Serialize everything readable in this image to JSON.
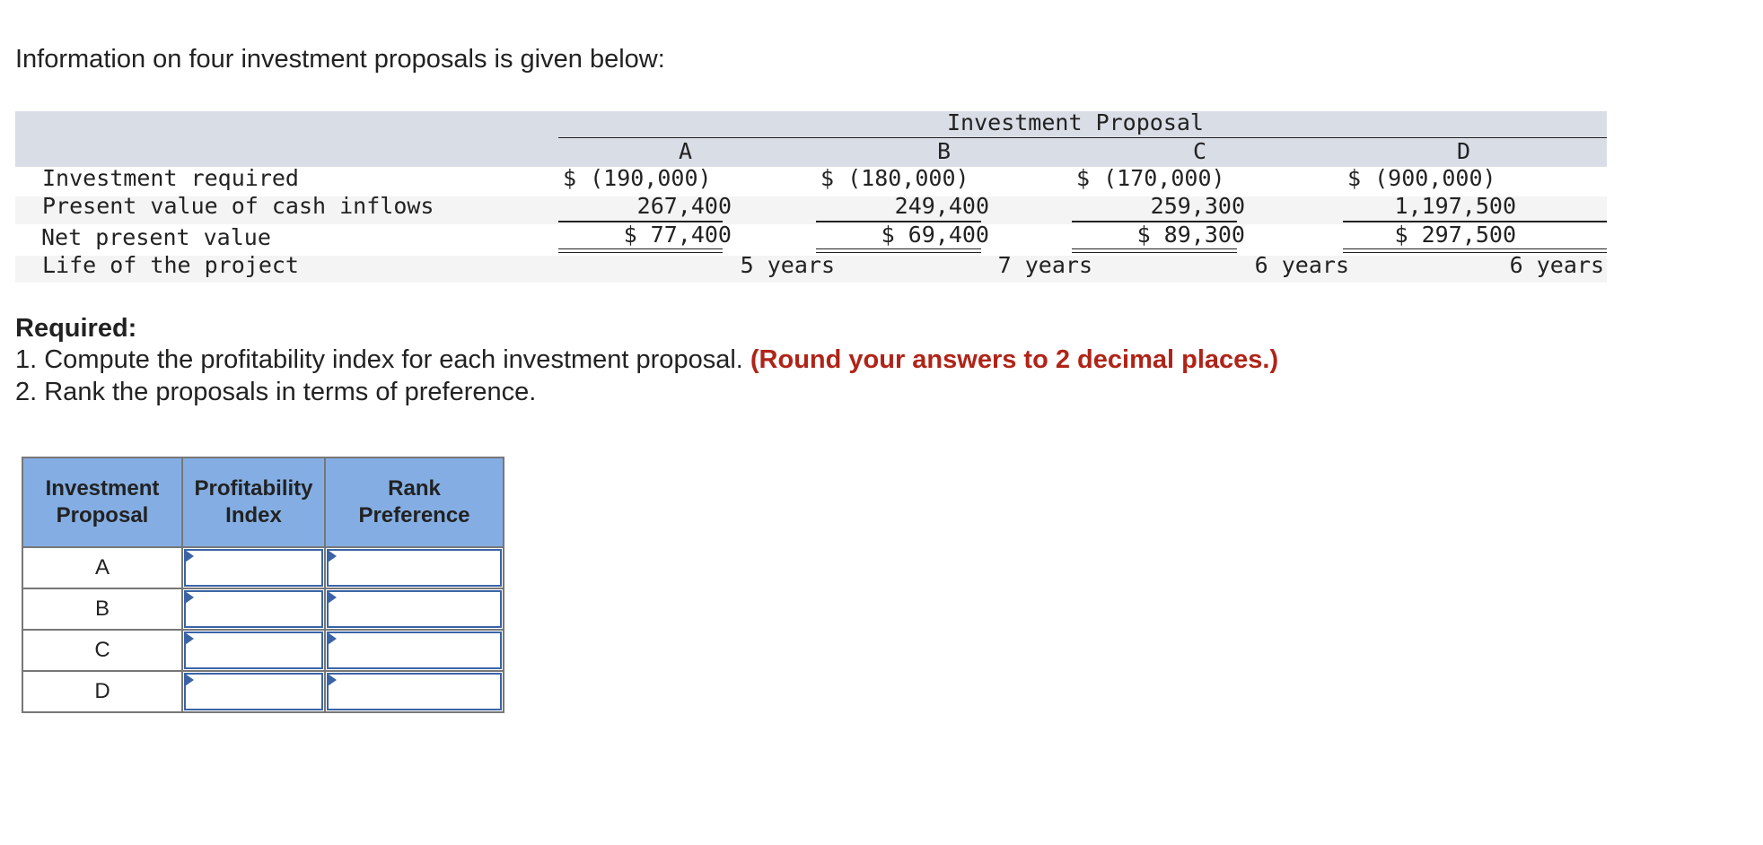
{
  "intro": "Information on four investment proposals is given below:",
  "data_table": {
    "group_header": "Investment Proposal",
    "columns": [
      "A",
      "B",
      "C",
      "D"
    ],
    "rows": [
      {
        "label": "Investment required",
        "values": [
          "$ (190,000)",
          "$ (180,000)",
          "$ (170,000)",
          "$ (900,000)"
        ]
      },
      {
        "label": "Present value of cash inflows",
        "values": [
          "267,400",
          "249,400",
          "259,300",
          "1,197,500"
        ]
      },
      {
        "label": "Net present value",
        "values": [
          "$ 77,400",
          "$ 69,400",
          "$ 89,300",
          "$ 297,500"
        ]
      },
      {
        "label": "Life of the project",
        "values": [
          "5 years",
          "7 years",
          "6 years",
          "6 years"
        ]
      }
    ]
  },
  "required": {
    "title": "Required:",
    "item1": "1. Compute the profitability index for each investment proposal.",
    "item1_note": "(Round your answers to 2 decimal places.)",
    "item2": "2. Rank the proposals in terms of preference."
  },
  "answer_table": {
    "headers": [
      "Investment Proposal",
      "Profitability Index",
      "Rank Preference"
    ],
    "header_lines": [
      [
        "Investment",
        "Proposal"
      ],
      [
        "Profitability",
        "Index"
      ],
      [
        "Rank",
        "Preference"
      ]
    ],
    "rows": [
      {
        "proposal": "A",
        "profitability_index": "",
        "rank": ""
      },
      {
        "proposal": "B",
        "profitability_index": "",
        "rank": ""
      },
      {
        "proposal": "C",
        "profitability_index": "",
        "rank": ""
      },
      {
        "proposal": "D",
        "profitability_index": "",
        "rank": ""
      }
    ]
  },
  "colors": {
    "header_band": "#d9dde6",
    "stripe": "#f4f4f4",
    "answer_header": "#84aee3",
    "input_border": "#3a64a6",
    "note_red": "#b02418"
  }
}
